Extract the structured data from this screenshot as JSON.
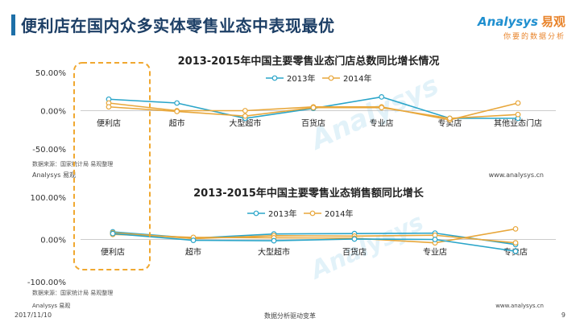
{
  "slide": {
    "title": "便利店在国内众多实体零售业态中表现最优",
    "logo_main": "Analysys",
    "logo_cn": "易观",
    "logo_sub": "你要的数据分析",
    "date": "2017/11/10",
    "footer_center": "数据分析驱动变革",
    "page_number": "9"
  },
  "colors": {
    "s2013": "#2aa5c9",
    "s2014": "#e8a73b",
    "highlight": "#f0a830",
    "watermark": "#bfe3f2"
  },
  "chart_data": [
    {
      "type": "line",
      "title": "2013-2015年中国主要零售业态门店总数同比增长情况",
      "categories": [
        "便利店",
        "超市",
        "大型超市",
        "百货店",
        "专业店",
        "专卖店",
        "其他业态门店"
      ],
      "series": [
        {
          "name": "2013年",
          "values": [
            15,
            10,
            -10,
            3,
            18,
            -10,
            -10
          ]
        },
        {
          "name": "2014年",
          "values": [
            10,
            0,
            0,
            5,
            5,
            -12,
            10
          ]
        },
        {
          "values": [
            5,
            -1,
            -7,
            4,
            4,
            -10,
            -5
          ]
        }
      ],
      "ylim": [
        -50,
        50
      ],
      "yticks": [
        "50.00%",
        "0.00%",
        "-50.00%"
      ],
      "source": "数据来源：国家统计局  易观整理",
      "brand": "Analysys 易观",
      "site": "www.analysys.cn"
    },
    {
      "type": "line",
      "title": "2013-2015年中国主要零售业态销售额同比增长",
      "categories": [
        "便利店",
        "超市",
        "大型超市",
        "百货店",
        "专业店",
        "专卖店"
      ],
      "series": [
        {
          "name": "2013年",
          "values": [
            18,
            3,
            13,
            14,
            15,
            -12
          ]
        },
        {
          "name": "2014年",
          "values": [
            16,
            2,
            9,
            8,
            10,
            -8
          ]
        },
        {
          "values": [
            12,
            5,
            4,
            3,
            -8,
            25
          ]
        },
        {
          "values": [
            14,
            -2,
            -3,
            1,
            0,
            -28
          ]
        }
      ],
      "ylim": [
        -100,
        100
      ],
      "yticks": [
        "100.00%",
        "0.00%",
        "-100.00%"
      ],
      "source": "数据来源：国家统计局  易观整理",
      "brand": "Analysys 易观",
      "site": "www.analysys.cn"
    }
  ]
}
